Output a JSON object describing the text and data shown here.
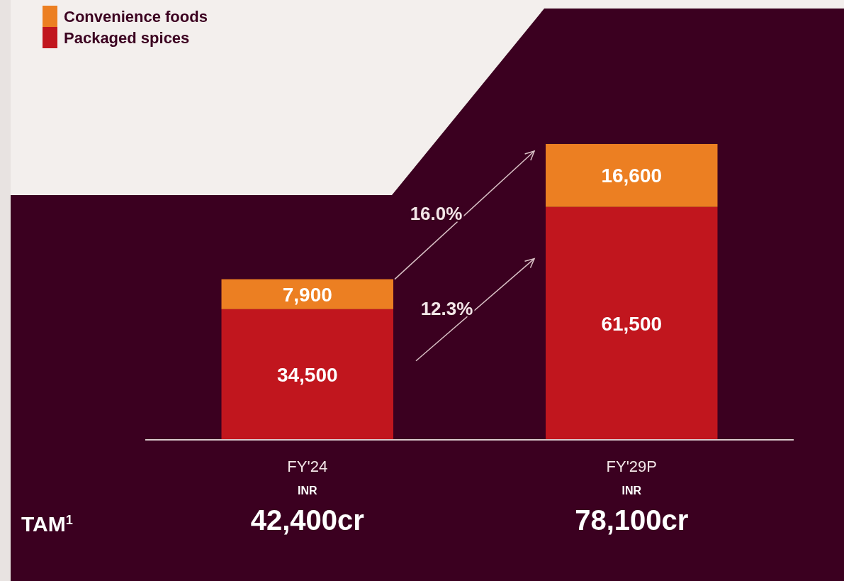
{
  "chart_data": {
    "type": "bar",
    "stacked": true,
    "legend": "top left",
    "categories": [
      "FY'24",
      "FY'29P"
    ],
    "series": [
      {
        "name": "Packaged spices",
        "color": "#c1161e",
        "values": [
          34500,
          61500
        ],
        "value_labels": [
          "34,500",
          "61,500"
        ]
      },
      {
        "name": "Convenience foods",
        "color": "#ec7f22",
        "values": [
          7900,
          16600
        ],
        "value_labels": [
          "7,900",
          "16,600"
        ]
      }
    ],
    "totals": [
      "42,400cr",
      "78,100cr"
    ],
    "annotations": [
      "12.3%",
      "16.0%",
      "TAM$^{1}$",
      "INR",
      "INR"
    ]
  }
}
